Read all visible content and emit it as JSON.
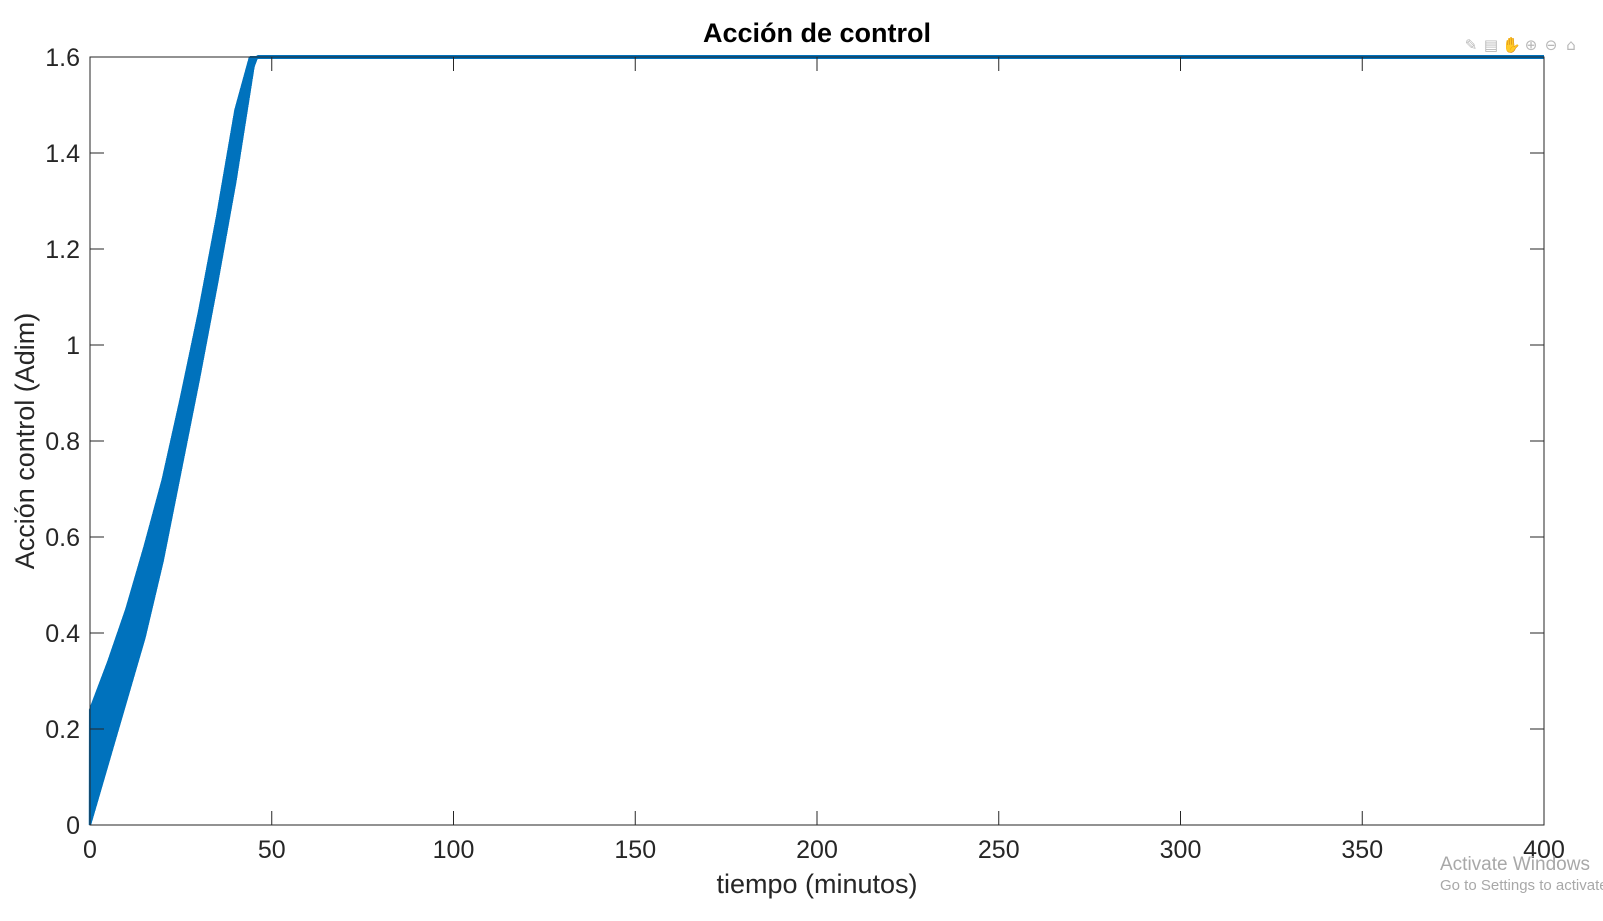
{
  "chart_data": {
    "type": "line",
    "title": "Acción de control",
    "xlabel": "tiempo (minutos)",
    "ylabel": "Acción control (Adim)",
    "xlim": [
      0,
      400
    ],
    "ylim": [
      0,
      1.6
    ],
    "xticks": [
      "0",
      "50",
      "100",
      "150",
      "200",
      "250",
      "300",
      "350",
      "400"
    ],
    "yticks": [
      "0",
      "0.2",
      "0.4",
      "0.6",
      "0.8",
      "1",
      "1.2",
      "1.4",
      "1.6"
    ],
    "grid": false,
    "series_color": "#0072BD",
    "series": [
      {
        "description_of_shape": "rapid oscillation between a lower and upper envelope, then saturates at 1.6",
        "upper_envelope": {
          "x": [
            0,
            5,
            10,
            15,
            20,
            25,
            30,
            35,
            40,
            44
          ],
          "y": [
            0.24,
            0.34,
            0.45,
            0.58,
            0.72,
            0.89,
            1.07,
            1.27,
            1.49,
            1.6
          ]
        },
        "lower_envelope": {
          "x": [
            0,
            5,
            10,
            15,
            20,
            25,
            30,
            35,
            40,
            45,
            46
          ],
          "y": [
            0.0,
            0.13,
            0.26,
            0.39,
            0.55,
            0.74,
            0.93,
            1.13,
            1.34,
            1.58,
            1.6
          ]
        },
        "saturation": {
          "x": [
            46,
            400
          ],
          "y": [
            1.6,
            1.6
          ]
        }
      }
    ]
  },
  "toolbar": {
    "icons": [
      "brush-icon",
      "datatip-icon",
      "pan-icon",
      "zoom-in-icon",
      "zoom-out-icon",
      "home-icon"
    ],
    "glyphs": [
      "✎",
      "▤",
      "✋",
      "⊕",
      "⊖",
      "⌂"
    ]
  },
  "watermark": {
    "line1": "Activate Windows",
    "line2": "Go to Settings to activate Windows."
  }
}
